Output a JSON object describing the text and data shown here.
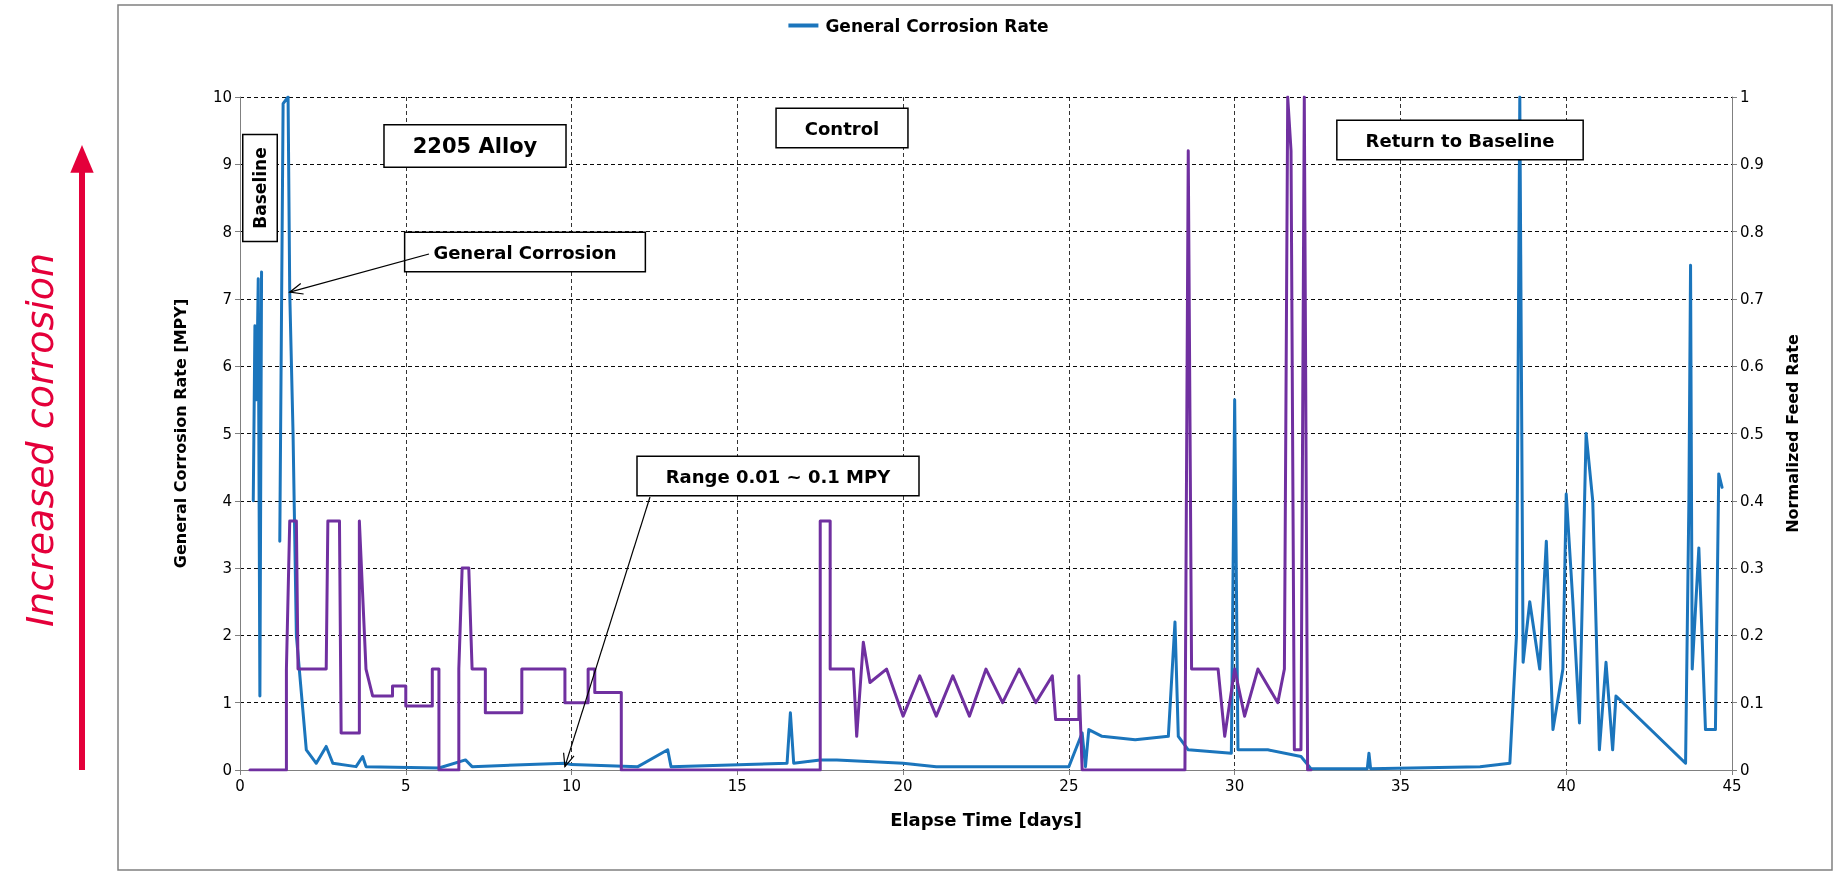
{
  "chart_data": {
    "type": "line",
    "xlabel": "Elapse Time [days]",
    "ylabel": "General Corrosion Rate [MPY]",
    "y2label": "Normalized Feed Rate",
    "xlim": [
      0,
      45
    ],
    "xticks": [
      0,
      5,
      10,
      15,
      20,
      25,
      30,
      35,
      40,
      45
    ],
    "ylim": [
      0,
      10
    ],
    "yticks": [
      0,
      1,
      2,
      3,
      4,
      5,
      6,
      7,
      8,
      9,
      10
    ],
    "y2lim": [
      0,
      1
    ],
    "y2ticks": [
      0,
      0.1,
      0.2,
      0.3,
      0.4,
      0.5,
      0.6,
      0.7,
      0.8,
      0.9,
      1
    ],
    "grid": true,
    "legend": "top",
    "marker": "none",
    "line_style": "solid",
    "series": [
      {
        "name": "General Corrosion Rate",
        "color": "#1b75bc",
        "axis": "y",
        "x": [
          0.4,
          0.45,
          0.5,
          0.55,
          0.6,
          0.65,
          0.7,
          1.2,
          1.3,
          1.45,
          1.5,
          1.6,
          1.7,
          2.0,
          2.3,
          2.6,
          2.8,
          3.5,
          3.7,
          3.8,
          6.0,
          6.8,
          7.0,
          9.8,
          10.0,
          12.0,
          12.9,
          13.0,
          16.5,
          16.6,
          16.7,
          17.5,
          18.0,
          20.0,
          21.0,
          25.0,
          25.4,
          25.5,
          25.6,
          26.0,
          27.0,
          28.0,
          28.2,
          28.3,
          28.6,
          29.9,
          30.0,
          30.1,
          31.0,
          32.0,
          32.3,
          34.0,
          34.05,
          34.1,
          37.4,
          38.3,
          38.5,
          38.6,
          38.7,
          38.9,
          39.2,
          39.4,
          39.6,
          39.9,
          40.0,
          40.2,
          40.4,
          40.6,
          40.8,
          41.0,
          41.2,
          41.4,
          41.5,
          43.6,
          43.7,
          43.75,
          43.8,
          44.0,
          44.2,
          44.5,
          44.6,
          44.7
        ],
        "values": [
          4.0,
          6.6,
          5.5,
          7.3,
          1.1,
          7.4,
          null,
          3.4,
          9.9,
          10,
          7.1,
          5.0,
          2.0,
          0.3,
          0.1,
          0.35,
          0.1,
          0.05,
          0.2,
          0.05,
          0.03,
          0.15,
          0.05,
          0.1,
          0.08,
          0.05,
          0.3,
          0.05,
          0.1,
          0.85,
          0.1,
          0.15,
          0.15,
          0.1,
          0.05,
          0.05,
          0.55,
          0.05,
          0.6,
          0.5,
          0.45,
          0.5,
          2.2,
          0.5,
          0.3,
          0.25,
          5.5,
          0.3,
          0.3,
          0.2,
          0.02,
          0.02,
          0.25,
          0.02,
          0.05,
          0.1,
          2.0,
          10,
          1.6,
          2.5,
          1.5,
          3.4,
          0.6,
          1.5,
          4.1,
          2.5,
          0.7,
          5.0,
          4.0,
          0.3,
          1.6,
          0.3,
          1.1,
          0.1,
          4.0,
          7.5,
          1.5,
          3.3,
          0.6,
          0.6,
          4.4,
          4.2
        ]
      },
      {
        "color": "#7030a0",
        "axis": "y2",
        "x": [
          0.3,
          1.4,
          1.4,
          1.5,
          1.7,
          1.75,
          2.6,
          2.65,
          3.0,
          3.05,
          3.6,
          3.6,
          3.8,
          4.0,
          4.6,
          4.6,
          5.0,
          5.0,
          5.8,
          5.8,
          6.0,
          6.0,
          6.6,
          6.6,
          6.7,
          6.9,
          7.0,
          7.4,
          7.4,
          8.5,
          8.5,
          9.8,
          9.8,
          10.5,
          10.5,
          10.7,
          10.7,
          11.5,
          11.5,
          17.5,
          17.5,
          17.8,
          17.8,
          18.5,
          18.6,
          18.8,
          19.0,
          19.5,
          20.0,
          20.5,
          21.0,
          21.5,
          22.0,
          22.5,
          23.0,
          23.5,
          24.0,
          24.5,
          24.6,
          25.3,
          25.3,
          25.4,
          28.5,
          28.6,
          28.7,
          29.5,
          29.7,
          30.0,
          30.3,
          30.7,
          31.3,
          31.5,
          31.6,
          31.7,
          31.8,
          32.0,
          32.1,
          32.2,
          32.3
        ],
        "values": [
          0,
          0,
          0.15,
          0.37,
          0.37,
          0.15,
          0.15,
          0.37,
          0.37,
          0.055,
          0.055,
          0.37,
          0.15,
          0.11,
          0.11,
          0.125,
          0.125,
          0.095,
          0.095,
          0.15,
          0.15,
          0,
          0,
          0.15,
          0.3,
          0.3,
          0.15,
          0.15,
          0.085,
          0.085,
          0.15,
          0.15,
          0.1,
          0.1,
          0.15,
          0.15,
          0.115,
          0.115,
          0,
          0,
          0.37,
          0.37,
          0.15,
          0.15,
          0.05,
          0.19,
          0.13,
          0.15,
          0.08,
          0.14,
          0.08,
          0.14,
          0.08,
          0.15,
          0.1,
          0.15,
          0.1,
          0.14,
          0.075,
          0.075,
          0.14,
          0,
          0,
          0.92,
          0.15,
          0.15,
          0.05,
          0.15,
          0.08,
          0.15,
          0.1,
          0.15,
          1.0,
          0.92,
          0.03,
          0.03,
          1.0,
          0,
          0
        ]
      }
    ],
    "annotations": [
      "Baseline",
      "2205 Alloy",
      {
        "text": "General Corrosion",
        "x": 1.5,
        "y": 7.1
      },
      "Control",
      {
        "text": "Range 0.01 ~ 0.1 MPY",
        "x": 9.8,
        "y": 0.05
      },
      "Return to Baseline",
      "Increased corrosion"
    ]
  }
}
